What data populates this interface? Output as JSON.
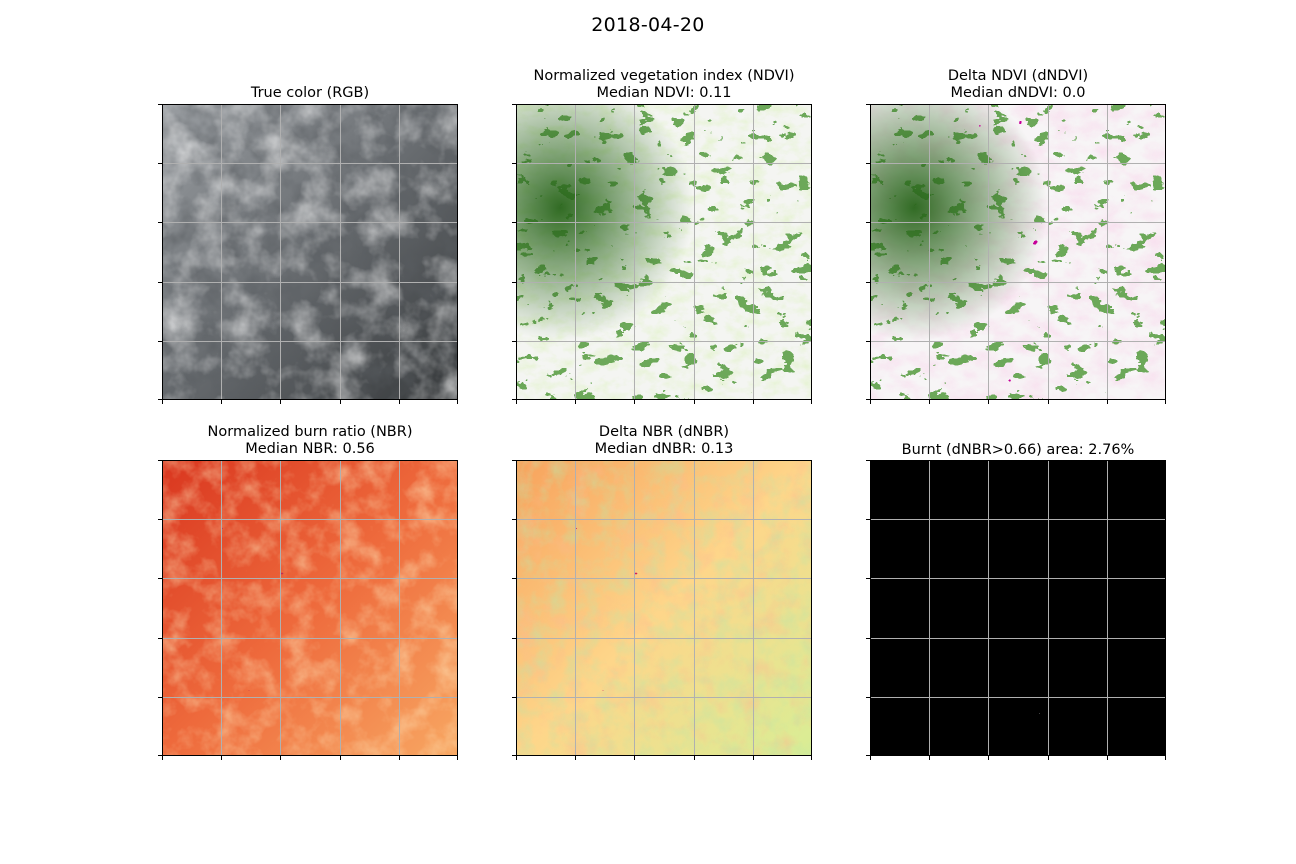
{
  "figure": {
    "suptitle": "2018-04-20"
  },
  "panels": [
    {
      "title_line1": "True color (RGB)",
      "title_line2": ""
    },
    {
      "title_line1": "Normalized vegetation index (NDVI)",
      "title_line2": "Median NDVI: 0.11"
    },
    {
      "title_line1": "Delta NDVI (dNDVI)",
      "title_line2": "Median dNDVI: 0.0"
    },
    {
      "title_line1": "Normalized burn ratio (NBR)",
      "title_line2": "Median NBR: 0.56"
    },
    {
      "title_line1": "Delta NBR (dNBR)",
      "title_line2": "Median dNBR: 0.13"
    },
    {
      "title_line1": "Burnt (dNBR>0.66) area: 2.76%",
      "title_line2": ""
    }
  ],
  "chart_data": [
    {
      "type": "heatmap",
      "title": "True color (RGB)",
      "grid": true,
      "colormap": "rgb-grey-clouds"
    },
    {
      "type": "heatmap",
      "title": "Normalized vegetation index (NDVI)",
      "annotation": "Median NDVI: 0.11",
      "median": 0.11,
      "grid": true,
      "colors": [
        "#f5f5f5",
        "#b8e186",
        "#276419"
      ]
    },
    {
      "type": "heatmap",
      "title": "Delta NDVI (dNDVI)",
      "annotation": "Median dNDVI: 0.0",
      "median": 0.0,
      "grid": true,
      "colors": [
        "#8e0152",
        "#f1b6da",
        "#f7f7f7",
        "#b8e186",
        "#276419"
      ]
    },
    {
      "type": "heatmap",
      "title": "Normalized burn ratio (NBR)",
      "annotation": "Median NBR: 0.56",
      "median": 0.56,
      "grid": true,
      "colors": [
        "#a50026",
        "#d73027",
        "#f46d43",
        "#fdae61",
        "#fee08b"
      ]
    },
    {
      "type": "heatmap",
      "title": "Delta NBR (dNBR)",
      "annotation": "Median dNBR: 0.13",
      "median": 0.13,
      "grid": true,
      "colors": [
        "#f46d43",
        "#fdae61",
        "#ffffbf",
        "#a6d96a",
        "#1a9850",
        "#a50026"
      ]
    },
    {
      "type": "heatmap",
      "title": "Burnt (dNBR>0.66) area: 2.76%",
      "threshold": 0.66,
      "burnt_area_percent": 2.76,
      "grid": true,
      "colors": [
        "#000000",
        "#ffffff"
      ]
    }
  ]
}
